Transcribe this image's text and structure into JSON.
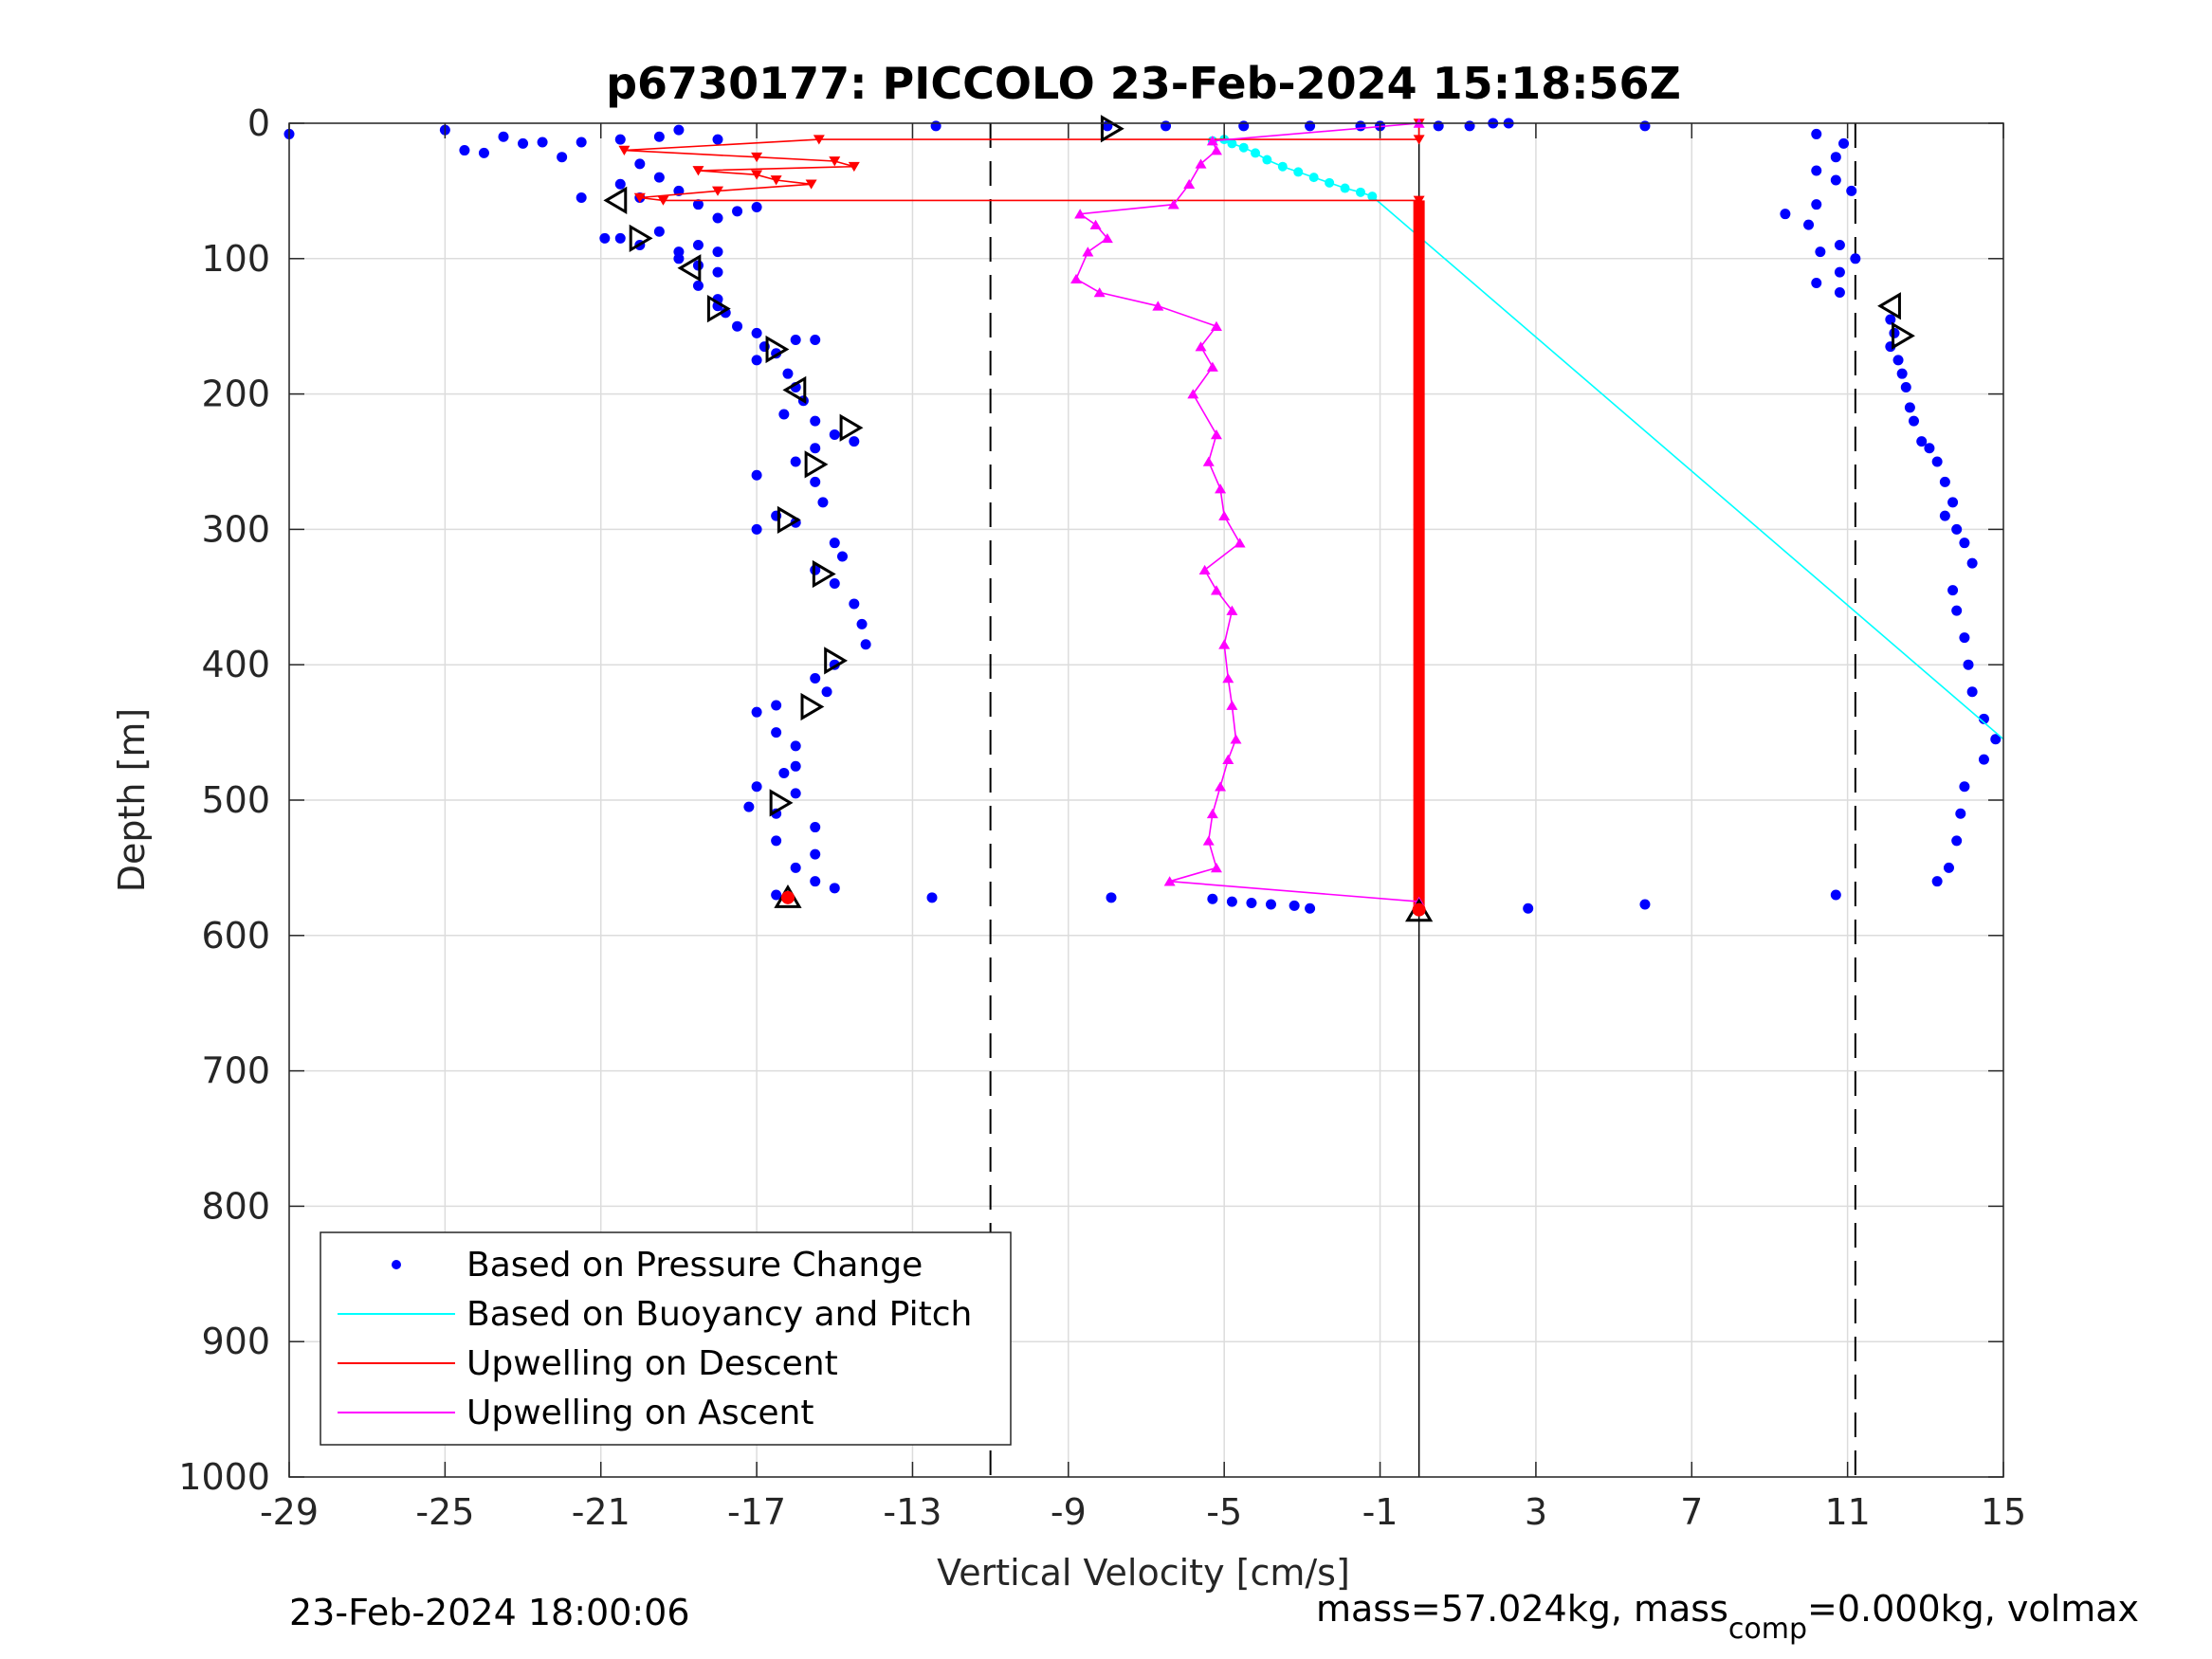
{
  "chart_data": {
    "type": "scatter",
    "title": "p6730177: PICCOLO 23-Feb-2024 15:18:56Z",
    "xlabel": "Vertical Velocity [cm/s]",
    "ylabel": "Depth [m]",
    "xlim": [
      -29,
      15
    ],
    "ylim": [
      0,
      1000
    ],
    "y_reversed": true,
    "grid": true,
    "xticks": [
      -29,
      -25,
      -21,
      -17,
      -13,
      -9,
      -5,
      -1,
      3,
      7,
      11,
      15
    ],
    "yticks": [
      0,
      100,
      200,
      300,
      400,
      500,
      600,
      700,
      800,
      900,
      1000
    ],
    "vlines_dashed": [
      -11,
      11.2
    ],
    "vline_solid": 0,
    "legend_position": "bottom-left",
    "legend": [
      {
        "label": "Based on Pressure Change",
        "color": "#0000ff",
        "style": "dot"
      },
      {
        "label": "Based on Buoyancy and Pitch",
        "color": "#00ffff",
        "style": "line"
      },
      {
        "label": "Upwelling on Descent",
        "color": "#ff0000",
        "style": "line"
      },
      {
        "label": "Upwelling on Ascent",
        "color": "#ff00ff",
        "style": "line"
      }
    ],
    "series": [
      {
        "name": "Based on Pressure Change",
        "style": "dot",
        "color": "#0000ff",
        "points": [
          [
            -29,
            8
          ],
          [
            -25,
            5
          ],
          [
            -24.5,
            20
          ],
          [
            -24,
            22
          ],
          [
            -23.5,
            10
          ],
          [
            -23,
            15
          ],
          [
            -22.5,
            14
          ],
          [
            -22,
            25
          ],
          [
            -21.5,
            14
          ],
          [
            -20.5,
            12
          ],
          [
            -20,
            30
          ],
          [
            -19.5,
            10
          ],
          [
            -19,
            5
          ],
          [
            -18,
            12
          ],
          [
            -21.5,
            55
          ],
          [
            -20.5,
            45
          ],
          [
            -20,
            55
          ],
          [
            -19.5,
            40
          ],
          [
            -19,
            50
          ],
          [
            -18.5,
            60
          ],
          [
            -18,
            70
          ],
          [
            -17.5,
            65
          ],
          [
            -17,
            62
          ],
          [
            -20.9,
            85
          ],
          [
            -20.5,
            85
          ],
          [
            -20,
            90
          ],
          [
            -19.5,
            80
          ],
          [
            -19,
            95
          ],
          [
            -18.5,
            90
          ],
          [
            -18,
            95
          ],
          [
            -19,
            100
          ],
          [
            -18.5,
            105
          ],
          [
            -18,
            110
          ],
          [
            -18.5,
            120
          ],
          [
            -18,
            130
          ],
          [
            -17.8,
            140
          ],
          [
            -18,
            135
          ],
          [
            -17.5,
            150
          ],
          [
            -17,
            155
          ],
          [
            -16.8,
            165
          ],
          [
            -16.5,
            170
          ],
          [
            -17,
            175
          ],
          [
            -16,
            160
          ],
          [
            -15.5,
            160
          ],
          [
            -16.2,
            185
          ],
          [
            -16,
            195
          ],
          [
            -15.8,
            205
          ],
          [
            -16.3,
            215
          ],
          [
            -15.5,
            220
          ],
          [
            -15,
            230
          ],
          [
            -14.5,
            235
          ],
          [
            -15.5,
            240
          ],
          [
            -16,
            250
          ],
          [
            -17,
            260
          ],
          [
            -15.5,
            265
          ],
          [
            -15.3,
            280
          ],
          [
            -16.5,
            290
          ],
          [
            -16,
            295
          ],
          [
            -17,
            300
          ],
          [
            -15,
            310
          ],
          [
            -14.8,
            320
          ],
          [
            -15.5,
            330
          ],
          [
            -15,
            340
          ],
          [
            -14.5,
            355
          ],
          [
            -14.3,
            370
          ],
          [
            -14.2,
            385
          ],
          [
            -15,
            400
          ],
          [
            -15.5,
            410
          ],
          [
            -15.2,
            420
          ],
          [
            -16.5,
            430
          ],
          [
            -17,
            435
          ],
          [
            -16.5,
            450
          ],
          [
            -16,
            460
          ],
          [
            -16,
            475
          ],
          [
            -16.3,
            480
          ],
          [
            -17,
            490
          ],
          [
            -16,
            495
          ],
          [
            -17.2,
            505
          ],
          [
            -16.5,
            510
          ],
          [
            -15.5,
            520
          ],
          [
            -16.5,
            530
          ],
          [
            -15.5,
            540
          ],
          [
            -16,
            550
          ],
          [
            -15.5,
            560
          ],
          [
            -15,
            565
          ],
          [
            -16.5,
            570
          ],
          [
            -12.5,
            572
          ],
          [
            -7.9,
            572
          ],
          [
            -5.3,
            573
          ],
          [
            -4.8,
            575
          ],
          [
            -4.3,
            576
          ],
          [
            -3.8,
            577
          ],
          [
            -3.2,
            578
          ],
          [
            -2.8,
            580
          ],
          [
            0,
            580
          ],
          [
            2.8,
            580
          ],
          [
            5.8,
            577
          ],
          [
            10.7,
            570
          ],
          [
            -12.4,
            2
          ],
          [
            -8,
            2
          ],
          [
            -6.5,
            2
          ],
          [
            -4.5,
            2
          ],
          [
            -2.8,
            2
          ],
          [
            -1.5,
            2
          ],
          [
            -1,
            2
          ],
          [
            0.5,
            2
          ],
          [
            1.3,
            2
          ],
          [
            1.9,
            0
          ],
          [
            2.3,
            0
          ],
          [
            5.8,
            2
          ],
          [
            10.2,
            8
          ],
          [
            10.9,
            15
          ],
          [
            10.7,
            25
          ],
          [
            10.2,
            35
          ],
          [
            10.7,
            42
          ],
          [
            11.1,
            50
          ],
          [
            10.2,
            60
          ],
          [
            9.4,
            67
          ],
          [
            10,
            75
          ],
          [
            10.8,
            90
          ],
          [
            10.3,
            95
          ],
          [
            11.2,
            100
          ],
          [
            10.8,
            110
          ],
          [
            10.2,
            118
          ],
          [
            10.8,
            125
          ],
          [
            12.1,
            145
          ],
          [
            12.2,
            155
          ],
          [
            12.1,
            165
          ],
          [
            12.3,
            175
          ],
          [
            12.4,
            185
          ],
          [
            12.5,
            195
          ],
          [
            12.6,
            210
          ],
          [
            12.7,
            220
          ],
          [
            12.9,
            235
          ],
          [
            13.1,
            240
          ],
          [
            13.3,
            250
          ],
          [
            13.5,
            265
          ],
          [
            13.7,
            280
          ],
          [
            13.5,
            290
          ],
          [
            13.8,
            300
          ],
          [
            14.0,
            310
          ],
          [
            14.2,
            325
          ],
          [
            13.7,
            345
          ],
          [
            13.8,
            360
          ],
          [
            14.0,
            380
          ],
          [
            14.1,
            400
          ],
          [
            14.2,
            420
          ],
          [
            14.5,
            440
          ],
          [
            14.8,
            455
          ],
          [
            14.5,
            470
          ],
          [
            14.0,
            490
          ],
          [
            13.9,
            510
          ],
          [
            13.8,
            530
          ],
          [
            13.6,
            550
          ],
          [
            13.3,
            560
          ]
        ]
      },
      {
        "name": "Based on Buoyancy and Pitch",
        "style": "line",
        "color": "#00ffff",
        "points": [
          [
            -5.3,
            13
          ],
          [
            -5,
            12
          ],
          [
            -4.8,
            15
          ],
          [
            -4.5,
            18
          ],
          [
            -4.2,
            22
          ],
          [
            -3.9,
            27
          ],
          [
            -3.5,
            32
          ],
          [
            -3.1,
            36
          ],
          [
            -2.7,
            40
          ],
          [
            -2.3,
            44
          ],
          [
            -1.9,
            48
          ],
          [
            -1.5,
            51
          ],
          [
            -1.2,
            54
          ],
          [
            15,
            455
          ]
        ]
      },
      {
        "name": "Upwelling on Descent",
        "style": "line-triangle-down",
        "color": "#ff0000",
        "points": [
          [
            0,
            0
          ],
          [
            0,
            12
          ],
          [
            -15.4,
            12
          ],
          [
            -20.4,
            20
          ],
          [
            -17,
            25
          ],
          [
            -15,
            28
          ],
          [
            -14.5,
            32
          ],
          [
            -18.5,
            35
          ],
          [
            -17,
            38
          ],
          [
            -16.5,
            42
          ],
          [
            -15.6,
            45
          ],
          [
            -18,
            50
          ],
          [
            -20,
            55
          ],
          [
            -19.4,
            57
          ],
          [
            0,
            57
          ],
          [
            0,
            62
          ],
          [
            0,
            100
          ],
          [
            0,
            200
          ],
          [
            0,
            300
          ],
          [
            0,
            400
          ],
          [
            0,
            500
          ],
          [
            0,
            575
          ],
          [
            0,
            580
          ]
        ]
      },
      {
        "name": "Upwelling on Ascent",
        "style": "line-triangle-up",
        "color": "#ff00ff",
        "points": [
          [
            0,
            0
          ],
          [
            -5.3,
            13
          ],
          [
            -5.2,
            20
          ],
          [
            -5.6,
            30
          ],
          [
            -5.9,
            45
          ],
          [
            -6.3,
            60
          ],
          [
            -8.7,
            67
          ],
          [
            -8.3,
            75
          ],
          [
            -8.0,
            85
          ],
          [
            -8.5,
            95
          ],
          [
            -8.8,
            115
          ],
          [
            -8.2,
            125
          ],
          [
            -6.7,
            135
          ],
          [
            -5.2,
            150
          ],
          [
            -5.6,
            165
          ],
          [
            -5.3,
            180
          ],
          [
            -5.8,
            200
          ],
          [
            -5.2,
            230
          ],
          [
            -5.4,
            250
          ],
          [
            -5.1,
            270
          ],
          [
            -5.0,
            290
          ],
          [
            -4.6,
            310
          ],
          [
            -5.5,
            330
          ],
          [
            -5.2,
            345
          ],
          [
            -4.8,
            360
          ],
          [
            -5.0,
            385
          ],
          [
            -4.9,
            410
          ],
          [
            -4.8,
            430
          ],
          [
            -4.7,
            455
          ],
          [
            -4.9,
            470
          ],
          [
            -5.1,
            490
          ],
          [
            -5.3,
            510
          ],
          [
            -5.4,
            530
          ],
          [
            -5.2,
            550
          ],
          [
            -6.4,
            560
          ],
          [
            0,
            575
          ]
        ]
      },
      {
        "name": "Markers",
        "style": "open-triangle",
        "color": "#000000",
        "points": [
          {
            "x": -7.9,
            "y": 4,
            "dir": "right"
          },
          {
            "x": -20.6,
            "y": 57,
            "dir": "left"
          },
          {
            "x": -20,
            "y": 85,
            "dir": "right"
          },
          {
            "x": -18.7,
            "y": 107,
            "dir": "left"
          },
          {
            "x": -18,
            "y": 137,
            "dir": "right"
          },
          {
            "x": -16.5,
            "y": 167,
            "dir": "right"
          },
          {
            "x": -16,
            "y": 197,
            "dir": "left"
          },
          {
            "x": -14.6,
            "y": 225,
            "dir": "right"
          },
          {
            "x": -15.5,
            "y": 252,
            "dir": "right"
          },
          {
            "x": -16.2,
            "y": 293,
            "dir": "right"
          },
          {
            "x": -15.3,
            "y": 333,
            "dir": "right"
          },
          {
            "x": -15,
            "y": 397,
            "dir": "right"
          },
          {
            "x": -15.6,
            "y": 431,
            "dir": "right"
          },
          {
            "x": -16.4,
            "y": 502,
            "dir": "right"
          },
          {
            "x": -16.2,
            "y": 572,
            "dir": "up"
          },
          {
            "x": 12.1,
            "y": 135,
            "dir": "left"
          },
          {
            "x": 12.4,
            "y": 157,
            "dir": "right"
          },
          {
            "x": 0,
            "y": 582,
            "dir": "up"
          }
        ]
      }
    ]
  },
  "footer": {
    "timestamp": "23-Feb-2024 18:00:06",
    "mass_prefix": "mass=57.024kg, mass",
    "mass_sub": "comp",
    "mass_suffix": "=0.000kg, volmax"
  }
}
